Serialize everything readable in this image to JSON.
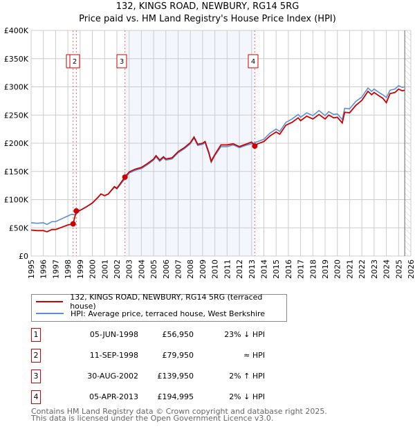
{
  "chart_data": {
    "type": "line",
    "title": "132, KINGS ROAD, NEWBURY, RG14 5RG",
    "subtitle": "Price paid vs. HM Land Registry's House Price Index (HPI)",
    "xlim": [
      1995,
      2026
    ],
    "ylim": [
      0,
      400000
    ],
    "yticks": [
      {
        "v": 0,
        "label": "£0"
      },
      {
        "v": 50000,
        "label": "£50K"
      },
      {
        "v": 100000,
        "label": "£100K"
      },
      {
        "v": 150000,
        "label": "£150K"
      },
      {
        "v": 200000,
        "label": "£200K"
      },
      {
        "v": 250000,
        "label": "£250K"
      },
      {
        "v": 300000,
        "label": "£300K"
      },
      {
        "v": 350000,
        "label": "£350K"
      },
      {
        "v": 400000,
        "label": "£400K"
      }
    ],
    "xticks": [
      "1995",
      "1996",
      "1997",
      "1998",
      "1999",
      "2000",
      "2001",
      "2002",
      "2003",
      "2004",
      "2005",
      "2006",
      "2007",
      "2008",
      "2009",
      "2010",
      "2011",
      "2012",
      "2013",
      "2014",
      "2015",
      "2016",
      "2017",
      "2018",
      "2019",
      "2020",
      "2021",
      "2022",
      "2023",
      "2024",
      "2025",
      "2026"
    ],
    "grid": true,
    "shaded_range": [
      2002.66,
      2013.26
    ],
    "forecast_from": 2025.5,
    "series": [
      {
        "name": "HPI: Average price, terraced house, West Berkshire",
        "color": "#5b8fd4",
        "points": [
          [
            1995,
            59
          ],
          [
            1995.5,
            58
          ],
          [
            1996,
            59
          ],
          [
            1996.3,
            56
          ],
          [
            1996.7,
            61
          ],
          [
            1997,
            61
          ],
          [
            1997.5,
            66
          ],
          [
            1998,
            71
          ],
          [
            1998.3,
            74
          ],
          [
            1998.6,
            73
          ],
          [
            1999,
            81
          ],
          [
            1999.5,
            87
          ],
          [
            2000,
            94
          ],
          [
            2000.5,
            105
          ],
          [
            2000.7,
            110
          ],
          [
            2001,
            107
          ],
          [
            2001.3,
            110
          ],
          [
            2001.8,
            122
          ],
          [
            2002,
            119
          ],
          [
            2002.66,
            137
          ],
          [
            2003,
            147
          ],
          [
            2003.5,
            152
          ],
          [
            2004,
            155
          ],
          [
            2004.5,
            162
          ],
          [
            2005,
            170
          ],
          [
            2005.2,
            176
          ],
          [
            2005.5,
            168
          ],
          [
            2005.8,
            174
          ],
          [
            2006,
            170
          ],
          [
            2006.5,
            172
          ],
          [
            2007,
            183
          ],
          [
            2007.5,
            190
          ],
          [
            2008,
            199
          ],
          [
            2008.3,
            209
          ],
          [
            2008.6,
            196
          ],
          [
            2009,
            198
          ],
          [
            2009.2,
            201
          ],
          [
            2009.5,
            182
          ],
          [
            2009.7,
            166
          ],
          [
            2010,
            178
          ],
          [
            2010.5,
            194
          ],
          [
            2011,
            194
          ],
          [
            2011.5,
            197
          ],
          [
            2012,
            192
          ],
          [
            2012.5,
            196
          ],
          [
            2013,
            199
          ],
          [
            2013.5,
            203
          ],
          [
            2014,
            207
          ],
          [
            2014.5,
            218
          ],
          [
            2015,
            225
          ],
          [
            2015.3,
            221
          ],
          [
            2015.8,
            237
          ],
          [
            2016.3,
            243
          ],
          [
            2016.8,
            251
          ],
          [
            2017,
            246
          ],
          [
            2017.5,
            254
          ],
          [
            2018,
            249
          ],
          [
            2018.5,
            258
          ],
          [
            2019,
            249
          ],
          [
            2019.3,
            256
          ],
          [
            2019.7,
            251
          ],
          [
            2020,
            252
          ],
          [
            2020.4,
            242
          ],
          [
            2020.6,
            262
          ],
          [
            2021,
            261
          ],
          [
            2021.5,
            274
          ],
          [
            2022,
            282
          ],
          [
            2022.5,
            298
          ],
          [
            2022.8,
            292
          ],
          [
            2023,
            296
          ],
          [
            2023.4,
            290
          ],
          [
            2023.7,
            286
          ],
          [
            2024,
            281
          ],
          [
            2024.3,
            294
          ],
          [
            2024.7,
            296
          ],
          [
            2025,
            302
          ],
          [
            2025.3,
            299
          ],
          [
            2025.5,
            300
          ]
        ]
      },
      {
        "name": "132, KINGS ROAD, NEWBURY, RG14 5RG (terraced house)",
        "color": "#cc0000",
        "points": [
          [
            1995,
            46
          ],
          [
            1995.5,
            45
          ],
          [
            1996,
            45
          ],
          [
            1996.3,
            43
          ],
          [
            1996.7,
            47
          ],
          [
            1997,
            47
          ],
          [
            1997.5,
            51
          ],
          [
            1998,
            55
          ],
          [
            1998.43,
            57
          ],
          [
            1998.69,
            80
          ],
          [
            1999,
            81
          ],
          [
            1999.5,
            87
          ],
          [
            2000,
            94
          ],
          [
            2000.5,
            105
          ],
          [
            2000.7,
            110
          ],
          [
            2001,
            107
          ],
          [
            2001.3,
            110
          ],
          [
            2001.8,
            123
          ],
          [
            2002,
            120
          ],
          [
            2002.66,
            140
          ],
          [
            2003,
            149
          ],
          [
            2003.5,
            154
          ],
          [
            2004,
            157
          ],
          [
            2004.5,
            164
          ],
          [
            2005,
            172
          ],
          [
            2005.2,
            178
          ],
          [
            2005.5,
            170
          ],
          [
            2005.8,
            176
          ],
          [
            2006,
            172
          ],
          [
            2006.5,
            174
          ],
          [
            2007,
            185
          ],
          [
            2007.5,
            192
          ],
          [
            2008,
            201
          ],
          [
            2008.3,
            211
          ],
          [
            2008.6,
            198
          ],
          [
            2009,
            200
          ],
          [
            2009.2,
            203
          ],
          [
            2009.5,
            184
          ],
          [
            2009.7,
            168
          ],
          [
            2010,
            180
          ],
          [
            2010.5,
            197
          ],
          [
            2011,
            197
          ],
          [
            2011.5,
            199
          ],
          [
            2012,
            194
          ],
          [
            2012.5,
            198
          ],
          [
            2013,
            202
          ],
          [
            2013.26,
            195
          ],
          [
            2013.5,
            199
          ],
          [
            2014,
            203
          ],
          [
            2014.5,
            213
          ],
          [
            2015,
            220
          ],
          [
            2015.3,
            216
          ],
          [
            2015.8,
            232
          ],
          [
            2016.3,
            237
          ],
          [
            2016.8,
            245
          ],
          [
            2017,
            240
          ],
          [
            2017.5,
            248
          ],
          [
            2018,
            243
          ],
          [
            2018.5,
            251
          ],
          [
            2019,
            243
          ],
          [
            2019.3,
            250
          ],
          [
            2019.7,
            245
          ],
          [
            2020,
            246
          ],
          [
            2020.4,
            236
          ],
          [
            2020.6,
            255
          ],
          [
            2021,
            254
          ],
          [
            2021.5,
            267
          ],
          [
            2022,
            276
          ],
          [
            2022.5,
            292
          ],
          [
            2022.8,
            286
          ],
          [
            2023,
            290
          ],
          [
            2023.4,
            284
          ],
          [
            2023.7,
            280
          ],
          [
            2024,
            272
          ],
          [
            2024.3,
            288
          ],
          [
            2024.7,
            290
          ],
          [
            2025,
            296
          ],
          [
            2025.3,
            293
          ],
          [
            2025.5,
            294
          ]
        ]
      }
    ],
    "sales": [
      {
        "id": "1",
        "x": 1998.43,
        "y": 56950,
        "date": "05-JUN-1998",
        "price": "£56,950",
        "rel": "23% ↓ HPI"
      },
      {
        "id": "2",
        "x": 1998.69,
        "y": 79950,
        "date": "11-SEP-1998",
        "price": "£79,950",
        "rel": "≈ HPI"
      },
      {
        "id": "3",
        "x": 2002.66,
        "y": 139950,
        "date": "30-AUG-2002",
        "price": "£139,950",
        "rel": "2% ↑ HPI"
      },
      {
        "id": "4",
        "x": 2013.26,
        "y": 194995,
        "date": "05-APR-2013",
        "price": "£194,995",
        "rel": "2% ↓ HPI"
      }
    ],
    "legend": {
      "placement": "below",
      "entries": [
        "132, KINGS ROAD, NEWBURY, RG14 5RG (terraced house)",
        "HPI: Average price, terraced house, West Berkshire"
      ]
    }
  },
  "footer": {
    "line1": "Contains HM Land Registry data © Crown copyright and database right 2025.",
    "line2": "This data is licensed under the Open Government Licence v3.0."
  }
}
